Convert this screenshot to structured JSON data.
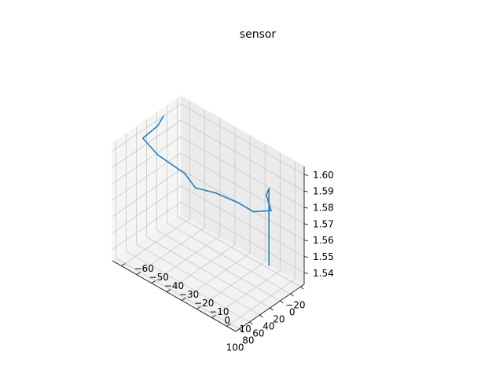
{
  "chart_data": {
    "type": "line",
    "projection": "3d",
    "title": "sensor",
    "xlabel": "",
    "ylabel": "",
    "zlabel": "",
    "grid": true,
    "xlim": [
      -27,
      107
    ],
    "ylim": [
      -66,
      16
    ],
    "zlim": [
      1.533,
      1.605
    ],
    "x_ticks": [
      -20,
      0,
      20,
      40,
      60,
      80,
      100
    ],
    "y_ticks": [
      -60,
      -50,
      -40,
      -30,
      -20,
      -10,
      0,
      10
    ],
    "z_ticks": [
      1.54,
      1.55,
      1.56,
      1.57,
      1.58,
      1.59,
      1.6
    ],
    "x_tick_labels": [
      "−20",
      "0",
      "20",
      "40",
      "60",
      "80",
      "100"
    ],
    "y_tick_labels": [
      "−60",
      "−50",
      "−40",
      "−30",
      "−20",
      "−10",
      "0",
      "10"
    ],
    "z_tick_labels": [
      "1.54",
      "1.55",
      "1.56",
      "1.57",
      "1.58",
      "1.59",
      "1.60"
    ],
    "series": [
      {
        "color": "#1f77b4",
        "points": [
          {
            "x": -20,
            "y": -5,
            "z": 1.535
          },
          {
            "x": -20,
            "y": -5,
            "z": 1.582
          },
          {
            "x": 0,
            "y": 0,
            "z": 1.585
          },
          {
            "x": 20,
            "y": 10,
            "z": 1.585
          },
          {
            "x": 40,
            "y": 5,
            "z": 1.586
          },
          {
            "x": 55,
            "y": 0,
            "z": 1.592
          },
          {
            "x": 70,
            "y": -10,
            "z": 1.596
          },
          {
            "x": 80,
            "y": -20,
            "z": 1.596
          },
          {
            "x": 80,
            "y": -27,
            "z": 1.601
          },
          {
            "x": 80,
            "y": -45,
            "z": 1.603
          },
          {
            "x": 65,
            "y": -60,
            "z": 1.602
          },
          {
            "x": 30,
            "y": -62,
            "z": 1.601
          },
          {
            "x": 10,
            "y": -65,
            "z": 1.601
          }
        ]
      }
    ]
  }
}
